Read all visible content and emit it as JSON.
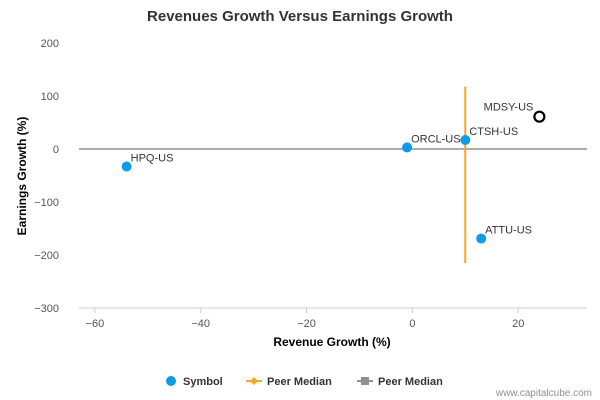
{
  "chart_data": {
    "type": "scatter",
    "title": "Revenues Growth Versus Earnings Growth",
    "xlabel": "Revenue Growth (%)",
    "ylabel": "Earnings Growth (%)",
    "xlim": [
      -63,
      33
    ],
    "ylim": [
      -300,
      200
    ],
    "x_ticks": [
      -60,
      -40,
      -20,
      0,
      20
    ],
    "y_ticks": [
      200,
      100,
      0,
      -100,
      -200,
      -300
    ],
    "x_tick_labels": [
      "−60",
      "−40",
      "−20",
      "0",
      "20"
    ],
    "y_tick_labels": [
      "200",
      "100",
      "0",
      "−100",
      "−200",
      "−300"
    ],
    "points": [
      {
        "label": "HPQ-US",
        "x": -54,
        "y": -33,
        "highlight": false
      },
      {
        "label": "ORCL-US",
        "x": -1,
        "y": 3,
        "highlight": false
      },
      {
        "label": "CTSH-US",
        "x": 10,
        "y": 17,
        "highlight": false
      },
      {
        "label": "ATTU-US",
        "x": 13,
        "y": -169,
        "highlight": false
      },
      {
        "label": "MDSY-US",
        "x": 24,
        "y": 61,
        "highlight": true
      }
    ],
    "peer_median_x": {
      "value": 10,
      "y_range": [
        -215,
        118
      ],
      "color": "#f5a623"
    },
    "peer_median_y": {
      "value": 0,
      "color": "#909090"
    },
    "legend": [
      {
        "name": "Symbol",
        "kind": "dot",
        "color": "#0f9be6"
      },
      {
        "name": "Peer Median",
        "kind": "orange-line",
        "color": "#f5a623"
      },
      {
        "name": "Peer Median",
        "kind": "gray-line",
        "color": "#909090"
      }
    ],
    "legend_position": "bottom",
    "grid": false,
    "point_color": "#0f9be6"
  },
  "credit": "www.capitalcube.com"
}
